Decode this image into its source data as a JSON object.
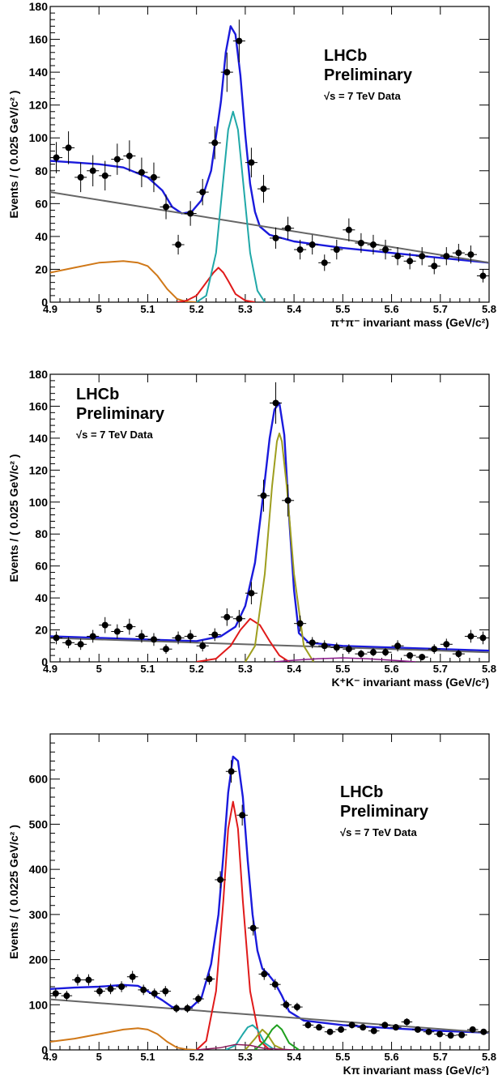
{
  "chart_data": [
    {
      "type": "scatter",
      "xlabel": "π⁺π⁻ invariant mass (GeV/c²)",
      "ylabel": "Events / ( 0.025 GeV/c² )",
      "xlim": [
        4.9,
        5.8
      ],
      "ylim": [
        0,
        180
      ],
      "xticks": [
        "4.9",
        "5",
        "5.1",
        "5.2",
        "5.3",
        "5.4",
        "5.5",
        "5.6",
        "5.7",
        "5.8"
      ],
      "yticks": [
        "0",
        "20",
        "40",
        "60",
        "80",
        "100",
        "120",
        "140",
        "160",
        "180"
      ],
      "label_lines": [
        "LHCb",
        "Preliminary",
        "√s = 7 TeV Data"
      ],
      "series": [
        {
          "kind": "points",
          "color": "#000000",
          "x": [
            4.9125,
            4.9375,
            4.9625,
            4.9875,
            5.0125,
            5.0375,
            5.0625,
            5.0875,
            5.1125,
            5.1375,
            5.1625,
            5.1875,
            5.2125,
            5.2375,
            5.2625,
            5.2875,
            5.3125,
            5.3375,
            5.3625,
            5.3875,
            5.4125,
            5.4375,
            5.4625,
            5.4875,
            5.5125,
            5.5375,
            5.5625,
            5.5875,
            5.6125,
            5.6375,
            5.6625,
            5.6875,
            5.7125,
            5.7375,
            5.7625,
            5.7875
          ],
          "y": [
            88,
            94,
            76,
            80,
            77,
            87,
            89,
            79,
            76,
            58,
            35,
            54,
            67,
            97,
            140,
            159,
            85,
            69,
            39,
            45,
            32,
            35,
            24,
            32,
            44,
            36,
            35,
            32,
            28,
            25,
            28,
            22,
            28,
            30,
            29,
            16
          ],
          "yerr": [
            9.5,
            10,
            9,
            9.5,
            9,
            9.5,
            9.5,
            9,
            9,
            7.5,
            6,
            7.5,
            8,
            10,
            12,
            13,
            9,
            8.5,
            6.5,
            7,
            6,
            6,
            5,
            6,
            7,
            6,
            6,
            6,
            5.5,
            5,
            5.5,
            5,
            5.5,
            5.5,
            5.5,
            4
          ]
        },
        {
          "kind": "curve",
          "color": "#1a1adc",
          "width": 2.4,
          "x": [
            4.9,
            4.95,
            5.0,
            5.05,
            5.1,
            5.13,
            5.15,
            5.17,
            5.19,
            5.21,
            5.23,
            5.25,
            5.26,
            5.27,
            5.28,
            5.29,
            5.3,
            5.31,
            5.32,
            5.33,
            5.35,
            5.4,
            5.5,
            5.6,
            5.7,
            5.8
          ],
          "y": [
            86,
            85,
            84,
            82,
            76,
            68,
            58,
            54,
            55,
            62,
            80,
            122,
            152,
            168,
            163,
            138,
            102,
            72,
            55,
            46,
            41,
            37,
            33,
            30,
            27,
            24
          ]
        },
        {
          "kind": "curve",
          "color": "#666666",
          "width": 2,
          "x": [
            4.9,
            5.8
          ],
          "y": [
            67,
            24
          ]
        },
        {
          "kind": "curve",
          "color": "#d07818",
          "width": 2,
          "x": [
            4.9,
            4.95,
            5.0,
            5.05,
            5.08,
            5.1,
            5.12,
            5.14,
            5.16,
            5.18,
            5.2
          ],
          "y": [
            18,
            21,
            24,
            25,
            24,
            22,
            16,
            8,
            2,
            0.3,
            0
          ]
        },
        {
          "kind": "curve",
          "color": "#e01a1a",
          "width": 2,
          "x": [
            5.16,
            5.18,
            5.2,
            5.22,
            5.235,
            5.245,
            5.255,
            5.265,
            5.28,
            5.3,
            5.32
          ],
          "y": [
            0,
            1,
            4,
            12,
            18,
            21,
            18,
            13,
            5,
            1,
            0
          ]
        },
        {
          "kind": "curve",
          "color": "#20a8a8",
          "width": 2,
          "x": [
            5.2,
            5.22,
            5.24,
            5.255,
            5.265,
            5.275,
            5.285,
            5.295,
            5.31,
            5.325,
            5.34
          ],
          "y": [
            0,
            4,
            30,
            75,
            105,
            116,
            105,
            75,
            30,
            7,
            0
          ]
        }
      ]
    },
    {
      "type": "scatter",
      "xlabel": "K⁺K⁻ invariant mass (GeV/c²)",
      "ylabel": "Events / ( 0.025 GeV/c² )",
      "xlim": [
        4.9,
        5.8
      ],
      "ylim": [
        0,
        180
      ],
      "xticks": [
        "4.9",
        "5",
        "5.1",
        "5.2",
        "5.3",
        "5.4",
        "5.5",
        "5.6",
        "5.7",
        "5.8"
      ],
      "yticks": [
        "0",
        "20",
        "40",
        "60",
        "80",
        "100",
        "120",
        "140",
        "160",
        "180"
      ],
      "label_lines": [
        "LHCb",
        "Preliminary",
        "√s = 7 TeV Data"
      ],
      "series": [
        {
          "kind": "points",
          "color": "#000000",
          "x": [
            4.9125,
            4.9375,
            4.9625,
            4.9875,
            5.0125,
            5.0375,
            5.0625,
            5.0875,
            5.1125,
            5.1375,
            5.1625,
            5.1875,
            5.2125,
            5.2375,
            5.2625,
            5.2875,
            5.3125,
            5.3375,
            5.3625,
            5.3875,
            5.4125,
            5.4375,
            5.4625,
            5.4875,
            5.5125,
            5.5375,
            5.5625,
            5.5875,
            5.6125,
            5.6375,
            5.6625,
            5.6875,
            5.7125,
            5.7375,
            5.7625,
            5.7875
          ],
          "y": [
            15,
            12,
            11,
            16,
            23,
            19,
            22,
            16,
            14,
            8,
            15,
            16,
            10,
            17,
            28,
            27,
            43,
            104,
            162,
            101,
            24,
            12,
            10,
            9,
            8,
            5,
            6,
            6,
            10,
            4,
            3,
            8,
            11,
            5,
            16,
            15
          ],
          "yerr": [
            4,
            3.5,
            3.5,
            4,
            5,
            4.5,
            5,
            4,
            4,
            3,
            4,
            4,
            3.5,
            4,
            5.5,
            5.5,
            7,
            10,
            13,
            10,
            5,
            3.5,
            3.5,
            3,
            3,
            2.5,
            2.5,
            2.5,
            3.5,
            2,
            2,
            3,
            3.5,
            2.5,
            4,
            4
          ]
        },
        {
          "kind": "curve",
          "color": "#1a1adc",
          "width": 2.4,
          "x": [
            4.9,
            5.0,
            5.1,
            5.2,
            5.25,
            5.28,
            5.3,
            5.32,
            5.335,
            5.35,
            5.36,
            5.37,
            5.38,
            5.39,
            5.4,
            5.41,
            5.43,
            5.5,
            5.6,
            5.7,
            5.8
          ],
          "y": [
            16,
            15,
            14,
            13,
            16,
            22,
            35,
            62,
            100,
            140,
            158,
            162,
            142,
            90,
            45,
            18,
            12,
            10,
            9,
            8,
            7
          ]
        },
        {
          "kind": "curve",
          "color": "#666666",
          "width": 2,
          "x": [
            4.9,
            5.8
          ],
          "y": [
            15,
            6
          ]
        },
        {
          "kind": "curve",
          "color": "#e01a1a",
          "width": 2,
          "x": [
            5.2,
            5.24,
            5.27,
            5.29,
            5.31,
            5.33,
            5.35,
            5.37,
            5.39
          ],
          "y": [
            0,
            2,
            10,
            20,
            27,
            23,
            13,
            4,
            0
          ]
        },
        {
          "kind": "curve",
          "color": "#9e9e1e",
          "width": 2,
          "x": [
            5.3,
            5.32,
            5.34,
            5.355,
            5.365,
            5.37,
            5.375,
            5.385,
            5.4,
            5.42,
            5.44
          ],
          "y": [
            0,
            10,
            55,
            110,
            138,
            143,
            138,
            110,
            55,
            10,
            0
          ]
        },
        {
          "kind": "curve",
          "color": "#8a1a8a",
          "width": 1.5,
          "x": [
            5.36,
            5.4,
            5.45,
            5.5,
            5.55,
            5.6,
            5.65
          ],
          "y": [
            0,
            1,
            2,
            2.5,
            2,
            1,
            0
          ]
        }
      ]
    },
    {
      "type": "scatter",
      "xlabel": "Kπ invariant mass (GeV/c²)",
      "ylabel": "Events / ( 0.0225 GeV/c² )",
      "xlim": [
        4.9,
        5.8
      ],
      "ylim": [
        0,
        700
      ],
      "xticks": [
        "4.9",
        "5",
        "5.1",
        "5.2",
        "5.3",
        "5.4",
        "5.5",
        "5.6",
        "5.7",
        "5.8"
      ],
      "yticks": [
        "0",
        "100",
        "200",
        "300",
        "400",
        "500",
        "600"
      ],
      "label_lines": [
        "LHCb",
        "Preliminary",
        "√s = 7 TeV Data"
      ],
      "series": [
        {
          "kind": "points",
          "color": "#000000",
          "x": [
            4.9113,
            4.9338,
            4.9563,
            4.9788,
            5.0013,
            5.0238,
            5.0463,
            5.0688,
            5.0913,
            5.1138,
            5.1363,
            5.1588,
            5.1813,
            5.2038,
            5.2263,
            5.2488,
            5.2713,
            5.2938,
            5.3163,
            5.3388,
            5.3613,
            5.3838,
            5.4063,
            5.4288,
            5.4513,
            5.4738,
            5.4963,
            5.5188,
            5.5413,
            5.5638,
            5.5863,
            5.6088,
            5.6313,
            5.6538,
            5.6763,
            5.6988,
            5.7213,
            5.7438,
            5.7663,
            5.7888
          ],
          "y": [
            125,
            120,
            155,
            155,
            130,
            135,
            140,
            162,
            133,
            125,
            130,
            92,
            92,
            113,
            157,
            377,
            617,
            520,
            270,
            168,
            145,
            100,
            95,
            55,
            50,
            40,
            45,
            55,
            50,
            42,
            55,
            50,
            62,
            45,
            40,
            35,
            32,
            33,
            45,
            40
          ],
          "yerr": [
            11,
            11,
            12.5,
            12.5,
            11.5,
            11.5,
            12,
            13,
            11.5,
            11,
            11.5,
            9.5,
            9.5,
            10.5,
            12.5,
            19,
            25,
            23,
            16.5,
            13,
            12,
            10,
            9.5,
            7.5,
            7,
            6.5,
            7,
            7.5,
            7,
            6.5,
            7.5,
            7,
            8,
            7,
            6.5,
            6,
            5.5,
            6,
            7,
            6.5
          ]
        },
        {
          "kind": "curve",
          "color": "#1a1adc",
          "width": 2.4,
          "x": [
            4.9,
            4.95,
            5.0,
            5.05,
            5.08,
            5.1,
            5.13,
            5.15,
            5.17,
            5.19,
            5.21,
            5.23,
            5.245,
            5.255,
            5.265,
            5.275,
            5.285,
            5.295,
            5.305,
            5.315,
            5.325,
            5.335,
            5.345,
            5.36,
            5.375,
            5.39,
            5.42,
            5.5,
            5.6,
            5.7,
            5.8
          ],
          "y": [
            135,
            138,
            140,
            144,
            142,
            130,
            110,
            95,
            90,
            95,
            115,
            190,
            300,
            430,
            570,
            650,
            640,
            560,
            420,
            300,
            220,
            180,
            170,
            150,
            120,
            85,
            65,
            55,
            48,
            42,
            38
          ]
        },
        {
          "kind": "curve",
          "color": "#666666",
          "width": 2,
          "x": [
            4.9,
            5.8
          ],
          "y": [
            112,
            38
          ]
        },
        {
          "kind": "curve",
          "color": "#d07818",
          "width": 2,
          "x": [
            4.9,
            4.95,
            5.0,
            5.05,
            5.08,
            5.1,
            5.12,
            5.14,
            5.16,
            5.18,
            5.2
          ],
          "y": [
            18,
            25,
            35,
            45,
            48,
            45,
            35,
            18,
            5,
            1,
            0
          ]
        },
        {
          "kind": "curve",
          "color": "#e01a1a",
          "width": 2,
          "x": [
            5.2,
            5.22,
            5.24,
            5.255,
            5.265,
            5.275,
            5.285,
            5.295,
            5.31,
            5.33,
            5.35
          ],
          "y": [
            0,
            20,
            130,
            330,
            490,
            550,
            490,
            330,
            130,
            20,
            0
          ]
        },
        {
          "kind": "curve",
          "color": "#20a8a8",
          "width": 2,
          "x": [
            5.26,
            5.28,
            5.295,
            5.305,
            5.315,
            5.325,
            5.34,
            5.36
          ],
          "y": [
            0,
            10,
            35,
            50,
            55,
            45,
            15,
            0
          ]
        },
        {
          "kind": "curve",
          "color": "#9e9e1e",
          "width": 2,
          "x": [
            5.3,
            5.32,
            5.335,
            5.345,
            5.36,
            5.38
          ],
          "y": [
            0,
            25,
            45,
            35,
            10,
            0
          ]
        },
        {
          "kind": "curve",
          "color": "#1fa01f",
          "width": 2,
          "x": [
            5.32,
            5.34,
            5.355,
            5.365,
            5.375,
            5.39,
            5.41
          ],
          "y": [
            0,
            20,
            45,
            55,
            45,
            15,
            0
          ]
        },
        {
          "kind": "curve",
          "color": "#8a1a5a",
          "width": 1.5,
          "x": [
            5.2,
            5.25,
            5.28,
            5.31,
            5.34,
            5.4
          ],
          "y": [
            0,
            5,
            12,
            10,
            3,
            0
          ]
        }
      ]
    }
  ]
}
